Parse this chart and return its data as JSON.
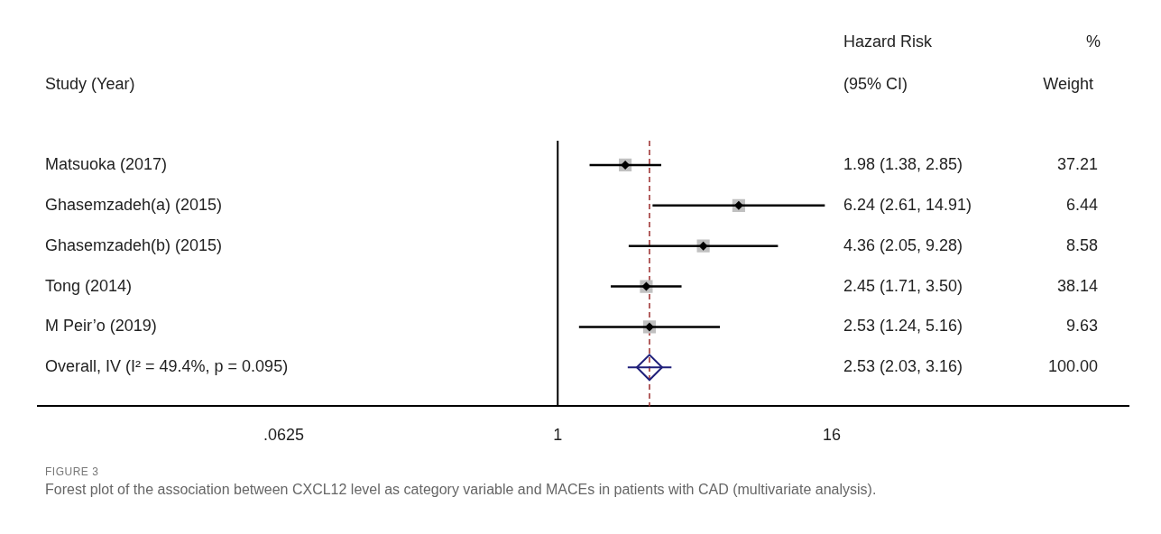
{
  "chart_data": {
    "type": "scatter",
    "orientation": "horizontal",
    "log": "x",
    "grid": false,
    "legend": false,
    "ylabel": "Study (Year)",
    "categories": [
      "Matsuoka (2017)",
      "Ghasemzadeh(a) (2015)",
      "Ghasemzadeh(b) (2015)",
      "Tong (2014)",
      "M Peir’o (2019)",
      "Overall, IV (I² = 49.4%, p = 0.095)"
    ],
    "series": [
      {
        "color": "#c0c0c0",
        "marker": "square",
        "values": [
          1.98,
          6.24,
          4.36,
          2.45,
          2.53,
          null
        ],
        "errors": [
          [
            1.38,
            2.85
          ],
          [
            2.61,
            14.91
          ],
          [
            2.05,
            9.28
          ],
          [
            1.71,
            3.5
          ],
          [
            1.24,
            5.16
          ],
          null
        ]
      },
      {
        "color": "#1f1f7a",
        "marker": "diamond",
        "values": [
          null,
          null,
          null,
          null,
          null,
          2.53
        ],
        "errors": [
          null,
          null,
          null,
          null,
          null,
          [
            2.03,
            3.16
          ]
        ]
      }
    ],
    "ref_lines": [
      {
        "axis": "x",
        "value": 1,
        "color": "#000000",
        "line_style": "solid"
      },
      {
        "axis": "x",
        "value": 2.53,
        "color": "#9b2c2c",
        "line_style": "dashed"
      }
    ],
    "xlim": [
      0.0052,
      322
    ],
    "xticks": [
      {
        "value": 0.0625,
        "label": ".0625"
      },
      1,
      16
    ],
    "annotations": [
      "Hazard Risk",
      "(95% CI)",
      "%",
      "Weight",
      "1.98 (1.38, 2.85)",
      "6.24 (2.61, 14.91)",
      "4.36 (2.05, 9.28)",
      "2.45 (1.71, 3.50)",
      "2.53 (1.24, 5.16)",
      "2.53 (2.03, 3.16)",
      "37.21",
      "6.44",
      "8.58",
      "38.14",
      "9.63",
      "100.00",
      "FIGURE 3",
      "Forest plot of the association between CXCL12 level as category variable and MACEs in patients with CAD (multivariate analysis)."
    ]
  }
}
